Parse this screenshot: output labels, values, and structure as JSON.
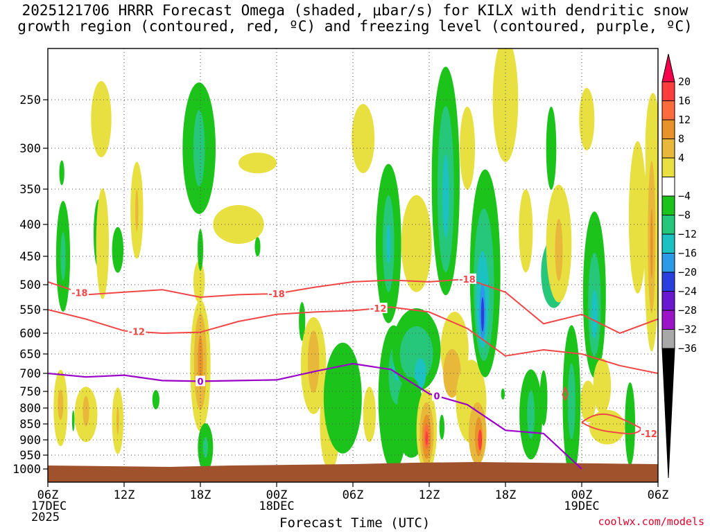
{
  "title": {
    "line1": "2025121706 HRRR Forecast Omega (shaded, μbar/s) for KILX with dendritic snow",
    "line2": "growth region (contoured, red, ºC) and freezing level (contoured, purple, ºC)"
  },
  "credit": "coolwx.com/models",
  "chart_data": {
    "type": "heatmap",
    "title": "2025121706 HRRR Forecast Omega (shaded, μbar/s) for KILX with dendritic snow growth region (contoured, red, ºC) and freezing level (contoured, purple, ºC)",
    "xlabel": "Forecast Time (UTC)",
    "ylabel": "Pressure (hPa)",
    "x_range_hours": [
      0,
      48
    ],
    "ylim_hpa": [
      1050,
      200
    ],
    "x_ticks": [
      {
        "h": 0,
        "lines": [
          "06Z",
          "17DEC",
          "2025"
        ]
      },
      {
        "h": 6,
        "lines": [
          "12Z"
        ]
      },
      {
        "h": 12,
        "lines": [
          "18Z"
        ]
      },
      {
        "h": 18,
        "lines": [
          "00Z",
          "18DEC"
        ]
      },
      {
        "h": 24,
        "lines": [
          "06Z"
        ]
      },
      {
        "h": 30,
        "lines": [
          "12Z"
        ]
      },
      {
        "h": 36,
        "lines": [
          "18Z"
        ]
      },
      {
        "h": 42,
        "lines": [
          "00Z",
          "19DEC"
        ]
      },
      {
        "h": 48,
        "lines": [
          "06Z"
        ]
      }
    ],
    "y_ticks": [
      250,
      300,
      350,
      400,
      450,
      500,
      550,
      600,
      650,
      700,
      750,
      800,
      850,
      900,
      950,
      1000
    ],
    "colorbar": {
      "labels": [
        "20",
        "16",
        "12",
        "8",
        "4",
        "−4",
        "−8",
        "−12",
        "−16",
        "−20",
        "−24",
        "−28",
        "−32",
        "−36"
      ],
      "colors": [
        "#f4004c",
        "#ff3d3d",
        "#ff6b3d",
        "#e8922a",
        "#e8b83a",
        "#e8e040",
        "#ffffff",
        "#1bc31b",
        "#27c77b",
        "#1cc2c2",
        "#2c9ae8",
        "#2a3fdd",
        "#6a18cf",
        "#9c14c8",
        "#a8a8a8",
        "#000000"
      ]
    },
    "surface_pressure_hpa": 980,
    "freezing_level": {
      "label": "0",
      "color": "#9a00c8",
      "hours": [
        0,
        3,
        6,
        9,
        12,
        15,
        18,
        21,
        24,
        27,
        30,
        33,
        36,
        39,
        42,
        45,
        48
      ],
      "pressure_hpa": [
        700,
        710,
        705,
        720,
        722,
        720,
        718,
        695,
        675,
        690,
        757,
        790,
        870,
        880,
        1000,
        null,
        null
      ]
    },
    "dgz_contours": [
      {
        "label": "-18",
        "color": "#f04646",
        "hours": [
          0,
          3,
          6,
          9,
          12,
          15,
          18,
          21,
          24,
          27,
          30,
          33,
          36,
          39,
          42,
          45,
          48
        ],
        "pressure_hpa": [
          495,
          520,
          515,
          510,
          525,
          520,
          518,
          505,
          495,
          492,
          495,
          490,
          515,
          580,
          560,
          600,
          570
        ]
      },
      {
        "label": "-12",
        "color": "#f04646",
        "hours": [
          0,
          3,
          6,
          9,
          12,
          15,
          18,
          21,
          24,
          27,
          30,
          33,
          36,
          39,
          42,
          45,
          48
        ],
        "pressure_hpa": [
          550,
          570,
          595,
          600,
          598,
          575,
          560,
          555,
          552,
          545,
          555,
          590,
          655,
          640,
          650,
          680,
          700
        ]
      }
    ],
    "omega_features": [
      {
        "hour": 11.8,
        "p_hpa": 300,
        "value": -12
      },
      {
        "hour": 1.5,
        "p_hpa": 440,
        "value": -8
      },
      {
        "hour": 12.0,
        "p_hpa": 680,
        "value": 12
      },
      {
        "hour": 26.8,
        "p_hpa": 430,
        "value": -12
      },
      {
        "hour": 27.5,
        "p_hpa": 680,
        "value": -12
      },
      {
        "hour": 29.2,
        "p_hpa": 700,
        "value": -12
      },
      {
        "hour": 31.2,
        "p_hpa": 350,
        "value": -12
      },
      {
        "hour": 34.2,
        "p_hpa": 560,
        "value": -24
      },
      {
        "hour": 33.5,
        "p_hpa": 500,
        "value": -12
      },
      {
        "hour": 29.8,
        "p_hpa": 890,
        "value": 20
      },
      {
        "hour": 34.0,
        "p_hpa": 890,
        "value": 20
      },
      {
        "hour": 43.0,
        "p_hpa": 560,
        "value": -12
      },
      {
        "hour": 47.5,
        "p_hpa": 420,
        "value": 8
      }
    ]
  }
}
